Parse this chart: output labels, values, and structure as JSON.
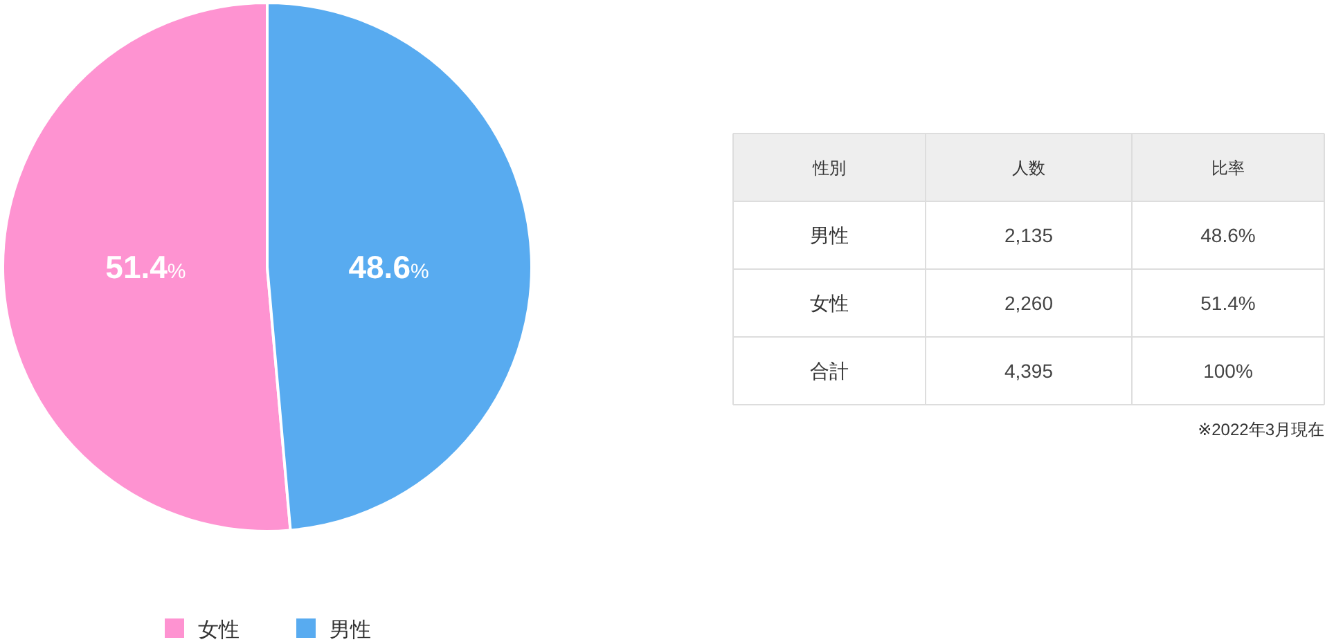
{
  "chart_data": [
    {
      "type": "pie",
      "categories": [
        "女性",
        "男性"
      ],
      "values": [
        51.4,
        48.6
      ],
      "colors": [
        "#fe93d1",
        "#58abf0"
      ],
      "value_labels": [
        "51.4%",
        "48.6%"
      ],
      "legend": "bottom"
    },
    {
      "type": "other",
      "ylabel": "性別",
      "categories": [
        "男性",
        "女性",
        "合計"
      ],
      "series": [
        {
          "name": "人数",
          "values": [
            2135,
            2260,
            4395
          ],
          "value_labels": [
            "2,135",
            "2,260",
            "4,395"
          ]
        },
        {
          "name": "比率",
          "values": [
            48.6,
            51.4,
            100
          ],
          "value_labels": [
            "48.6%",
            "51.4%",
            "100%"
          ]
        }
      ],
      "annotations": [
        "※2022年3月現在"
      ]
    }
  ]
}
